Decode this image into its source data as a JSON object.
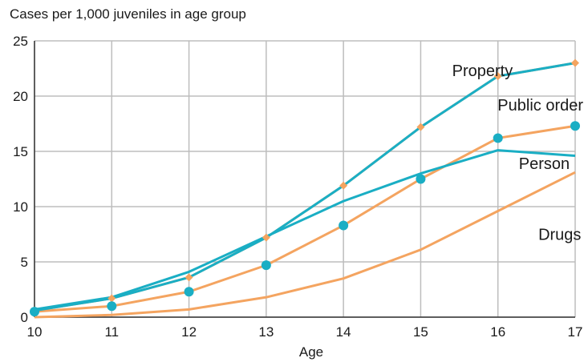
{
  "chart_data": {
    "type": "line",
    "ylabel": "Cases per 1,000 juveniles in age group",
    "xlabel": "Age",
    "x": [
      10,
      11,
      12,
      13,
      14,
      15,
      16,
      17
    ],
    "xlim": [
      10,
      17
    ],
    "ylim": [
      0,
      25
    ],
    "yticks": [
      0,
      5,
      10,
      15,
      20,
      25
    ],
    "grid": true,
    "series": [
      {
        "name": "Property",
        "color": "#f4a460",
        "marker": "diamond",
        "labelColor": "#1a1a1a",
        "values": [
          0.6,
          1.7,
          3.6,
          7.2,
          11.9,
          17.2,
          21.8,
          23.0
        ]
      },
      {
        "name": "Public order",
        "color": "#f4a460",
        "marker": "circle-teal",
        "values": [
          0.5,
          1.0,
          2.3,
          4.7,
          8.3,
          12.5,
          16.2,
          17.3
        ]
      },
      {
        "name": "Public order markers",
        "color": "#1aaec4",
        "marker": "circle",
        "values": [
          0.5,
          1.0,
          2.3,
          4.7,
          8.3,
          12.5,
          16.2,
          17.3
        ]
      },
      {
        "name": "Person",
        "color": "#1aaec4",
        "marker": "none",
        "values": [
          0.7,
          1.8,
          4.1,
          7.3,
          10.5,
          13.0,
          15.1,
          14.6
        ]
      },
      {
        "name": "Property line",
        "color": "#1aaec4",
        "marker": "none",
        "values": [
          0.6,
          1.7,
          3.6,
          7.2,
          11.9,
          17.2,
          21.8,
          23.0
        ]
      },
      {
        "name": "Drugs",
        "color": "#f4a460",
        "marker": "none",
        "values": [
          0.0,
          0.2,
          0.7,
          1.8,
          3.5,
          6.1,
          9.6,
          13.1
        ]
      }
    ],
    "annotations": [
      {
        "text": "Property",
        "x": 15.8,
        "y": 21.8
      },
      {
        "text": "Public order",
        "x": 16.55,
        "y": 18.7
      },
      {
        "text": "Person",
        "x": 16.6,
        "y": 13.4
      },
      {
        "text": "Drugs",
        "x": 16.8,
        "y": 7.0
      }
    ]
  }
}
